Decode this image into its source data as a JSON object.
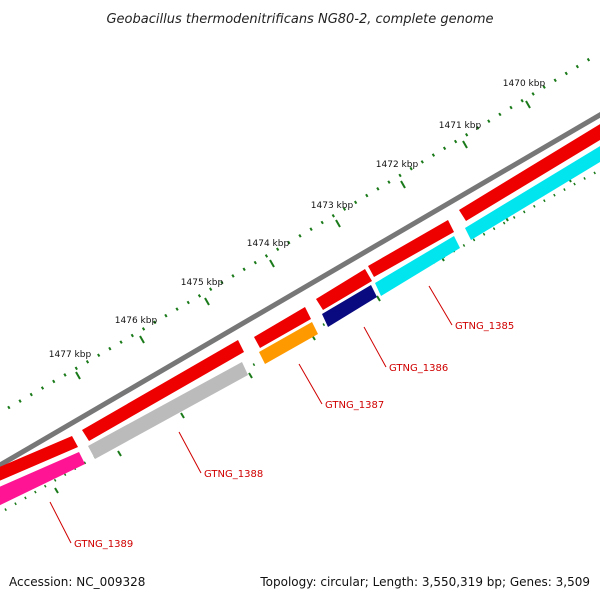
{
  "title": "Geobacillus thermodenitrificans NG80-2, complete genome",
  "footer": {
    "accession": "Accession: NC_009328",
    "summary": "Topology: circular; Length: 3,550,319 bp; Genes: 3,509"
  },
  "ruler": {
    "labels": [
      "1470 kbp",
      "1471 kbp",
      "1472 kbp",
      "1473 kbp",
      "1474 kbp",
      "1475 kbp",
      "1476 kbp",
      "1477 kbp"
    ],
    "tick_color": "#1a7a1a"
  },
  "genes": {
    "labels": [
      "GTNG_1385",
      "GTNG_1386",
      "GTNG_1387",
      "GTNG_1388",
      "GTNG_1389"
    ],
    "label_color": "#d00000"
  },
  "colors": {
    "backbone": "#777777",
    "cds": "#ee0000",
    "gene_1385": "#00e5ee",
    "gene_1386": "#0a0a80",
    "gene_1387": "#ff9900",
    "gene_1388": "#bbbbbb",
    "gene_1389": "#ff1493"
  }
}
